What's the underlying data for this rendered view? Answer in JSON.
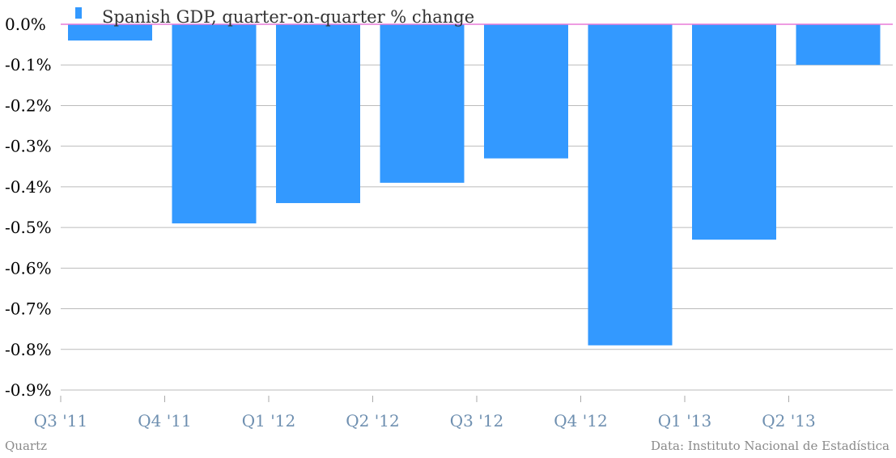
{
  "chart_data": {
    "type": "bar",
    "title": "",
    "xlabel": "",
    "ylabel": "",
    "categories": [
      "Q3 '11",
      "Q4 '11",
      "Q1 '12",
      "Q2 '12",
      "Q3 '12",
      "Q4 '12",
      "Q1 '13",
      "Q2 '13"
    ],
    "bar_values": [
      -0.04,
      -0.49,
      -0.44,
      -0.39,
      -0.33,
      -0.79,
      -0.53,
      -0.1
    ],
    "series": [
      {
        "name": "Spanish GDP, quarter-on-quarter % change",
        "values": [
          -0.04,
          -0.49,
          -0.44,
          -0.39,
          -0.33,
          -0.79,
          -0.53,
          -0.1
        ],
        "color": "#3399ff"
      }
    ],
    "ylim": [
      -0.9,
      0.0
    ],
    "yticks": [
      0.0,
      -0.1,
      -0.2,
      -0.3,
      -0.4,
      -0.5,
      -0.6,
      -0.7,
      -0.8,
      -0.9
    ],
    "ytick_labels": [
      "0.0%",
      "-0.1%",
      "-0.2%",
      "-0.3%",
      "-0.4%",
      "-0.5%",
      "-0.6%",
      "-0.7%",
      "-0.8%",
      "-0.9%"
    ],
    "grid": true,
    "legend_position": "top-left",
    "zero_line_color": "#e87ad9",
    "grid_color": "#bbbbbb"
  },
  "footer": {
    "source_left": "Quartz",
    "source_right": "Data: Instituto Nacional de Estadística"
  }
}
